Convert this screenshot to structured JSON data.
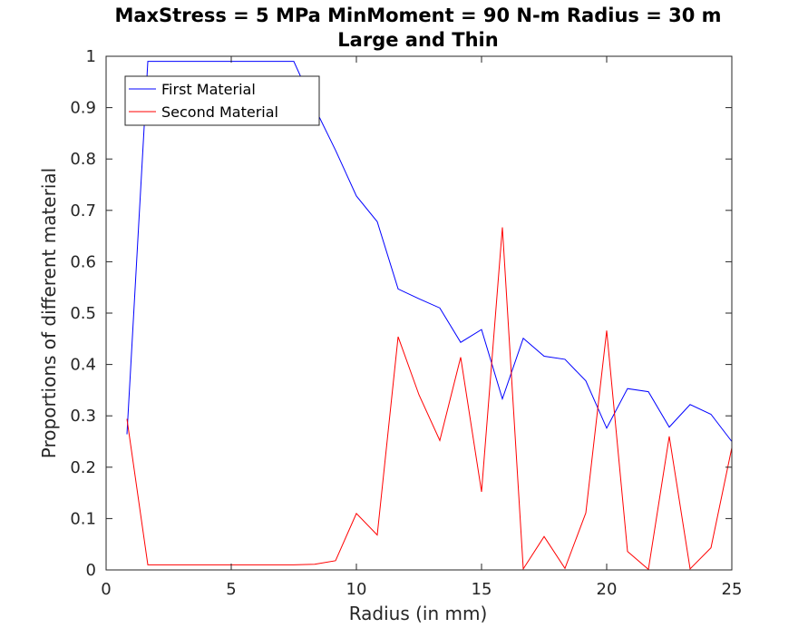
{
  "chart_data": {
    "type": "line",
    "title": "MaxStress = 5 MPa MinMoment = 90 N-m Radius = 30 m",
    "subtitle": "Large and Thin",
    "xlabel": "Radius (in mm)",
    "ylabel": "Proportions of different material",
    "xlim": [
      0,
      25
    ],
    "ylim": [
      0,
      1
    ],
    "xticks": [
      0,
      5,
      10,
      15,
      20,
      25
    ],
    "yticks": [
      0,
      0.1,
      0.2,
      0.3,
      0.4,
      0.5,
      0.6,
      0.7,
      0.8,
      0.9,
      1
    ],
    "grid": false,
    "legend_position": "top-left",
    "series": [
      {
        "name": "First Material",
        "color": "#0000ff",
        "x": [
          0.833,
          1.667,
          2.5,
          3.333,
          4.167,
          5.0,
          5.833,
          6.667,
          7.5,
          8.333,
          9.167,
          10.0,
          10.833,
          11.667,
          12.5,
          13.333,
          14.167,
          15.0,
          15.833,
          16.667,
          17.5,
          18.333,
          19.167,
          20.0,
          20.833,
          21.667,
          22.5,
          23.333,
          24.167,
          25.0
        ],
        "values": [
          0.264,
          0.99,
          0.99,
          0.99,
          0.99,
          0.99,
          0.99,
          0.99,
          0.99,
          0.9,
          0.817,
          0.728,
          0.678,
          0.547,
          0.528,
          0.51,
          0.443,
          0.468,
          0.333,
          0.451,
          0.416,
          0.41,
          0.368,
          0.276,
          0.353,
          0.347,
          0.278,
          0.322,
          0.303,
          0.25
        ]
      },
      {
        "name": "Second Material",
        "color": "#ff0000",
        "x": [
          0.833,
          1.667,
          2.5,
          3.333,
          4.167,
          5.0,
          5.833,
          6.667,
          7.5,
          8.333,
          9.167,
          10.0,
          10.833,
          11.667,
          12.5,
          13.333,
          14.167,
          15.0,
          15.833,
          16.667,
          17.5,
          18.333,
          19.167,
          20.0,
          20.833,
          21.667,
          22.5,
          23.333,
          24.167,
          25.0
        ],
        "values": [
          0.294,
          0.01,
          0.01,
          0.01,
          0.01,
          0.01,
          0.01,
          0.01,
          0.01,
          0.011,
          0.018,
          0.11,
          0.068,
          0.454,
          0.341,
          0.252,
          0.414,
          0.152,
          0.667,
          0.002,
          0.065,
          0.003,
          0.111,
          0.466,
          0.036,
          0.001,
          0.26,
          0.002,
          0.043,
          0.238
        ]
      }
    ]
  }
}
